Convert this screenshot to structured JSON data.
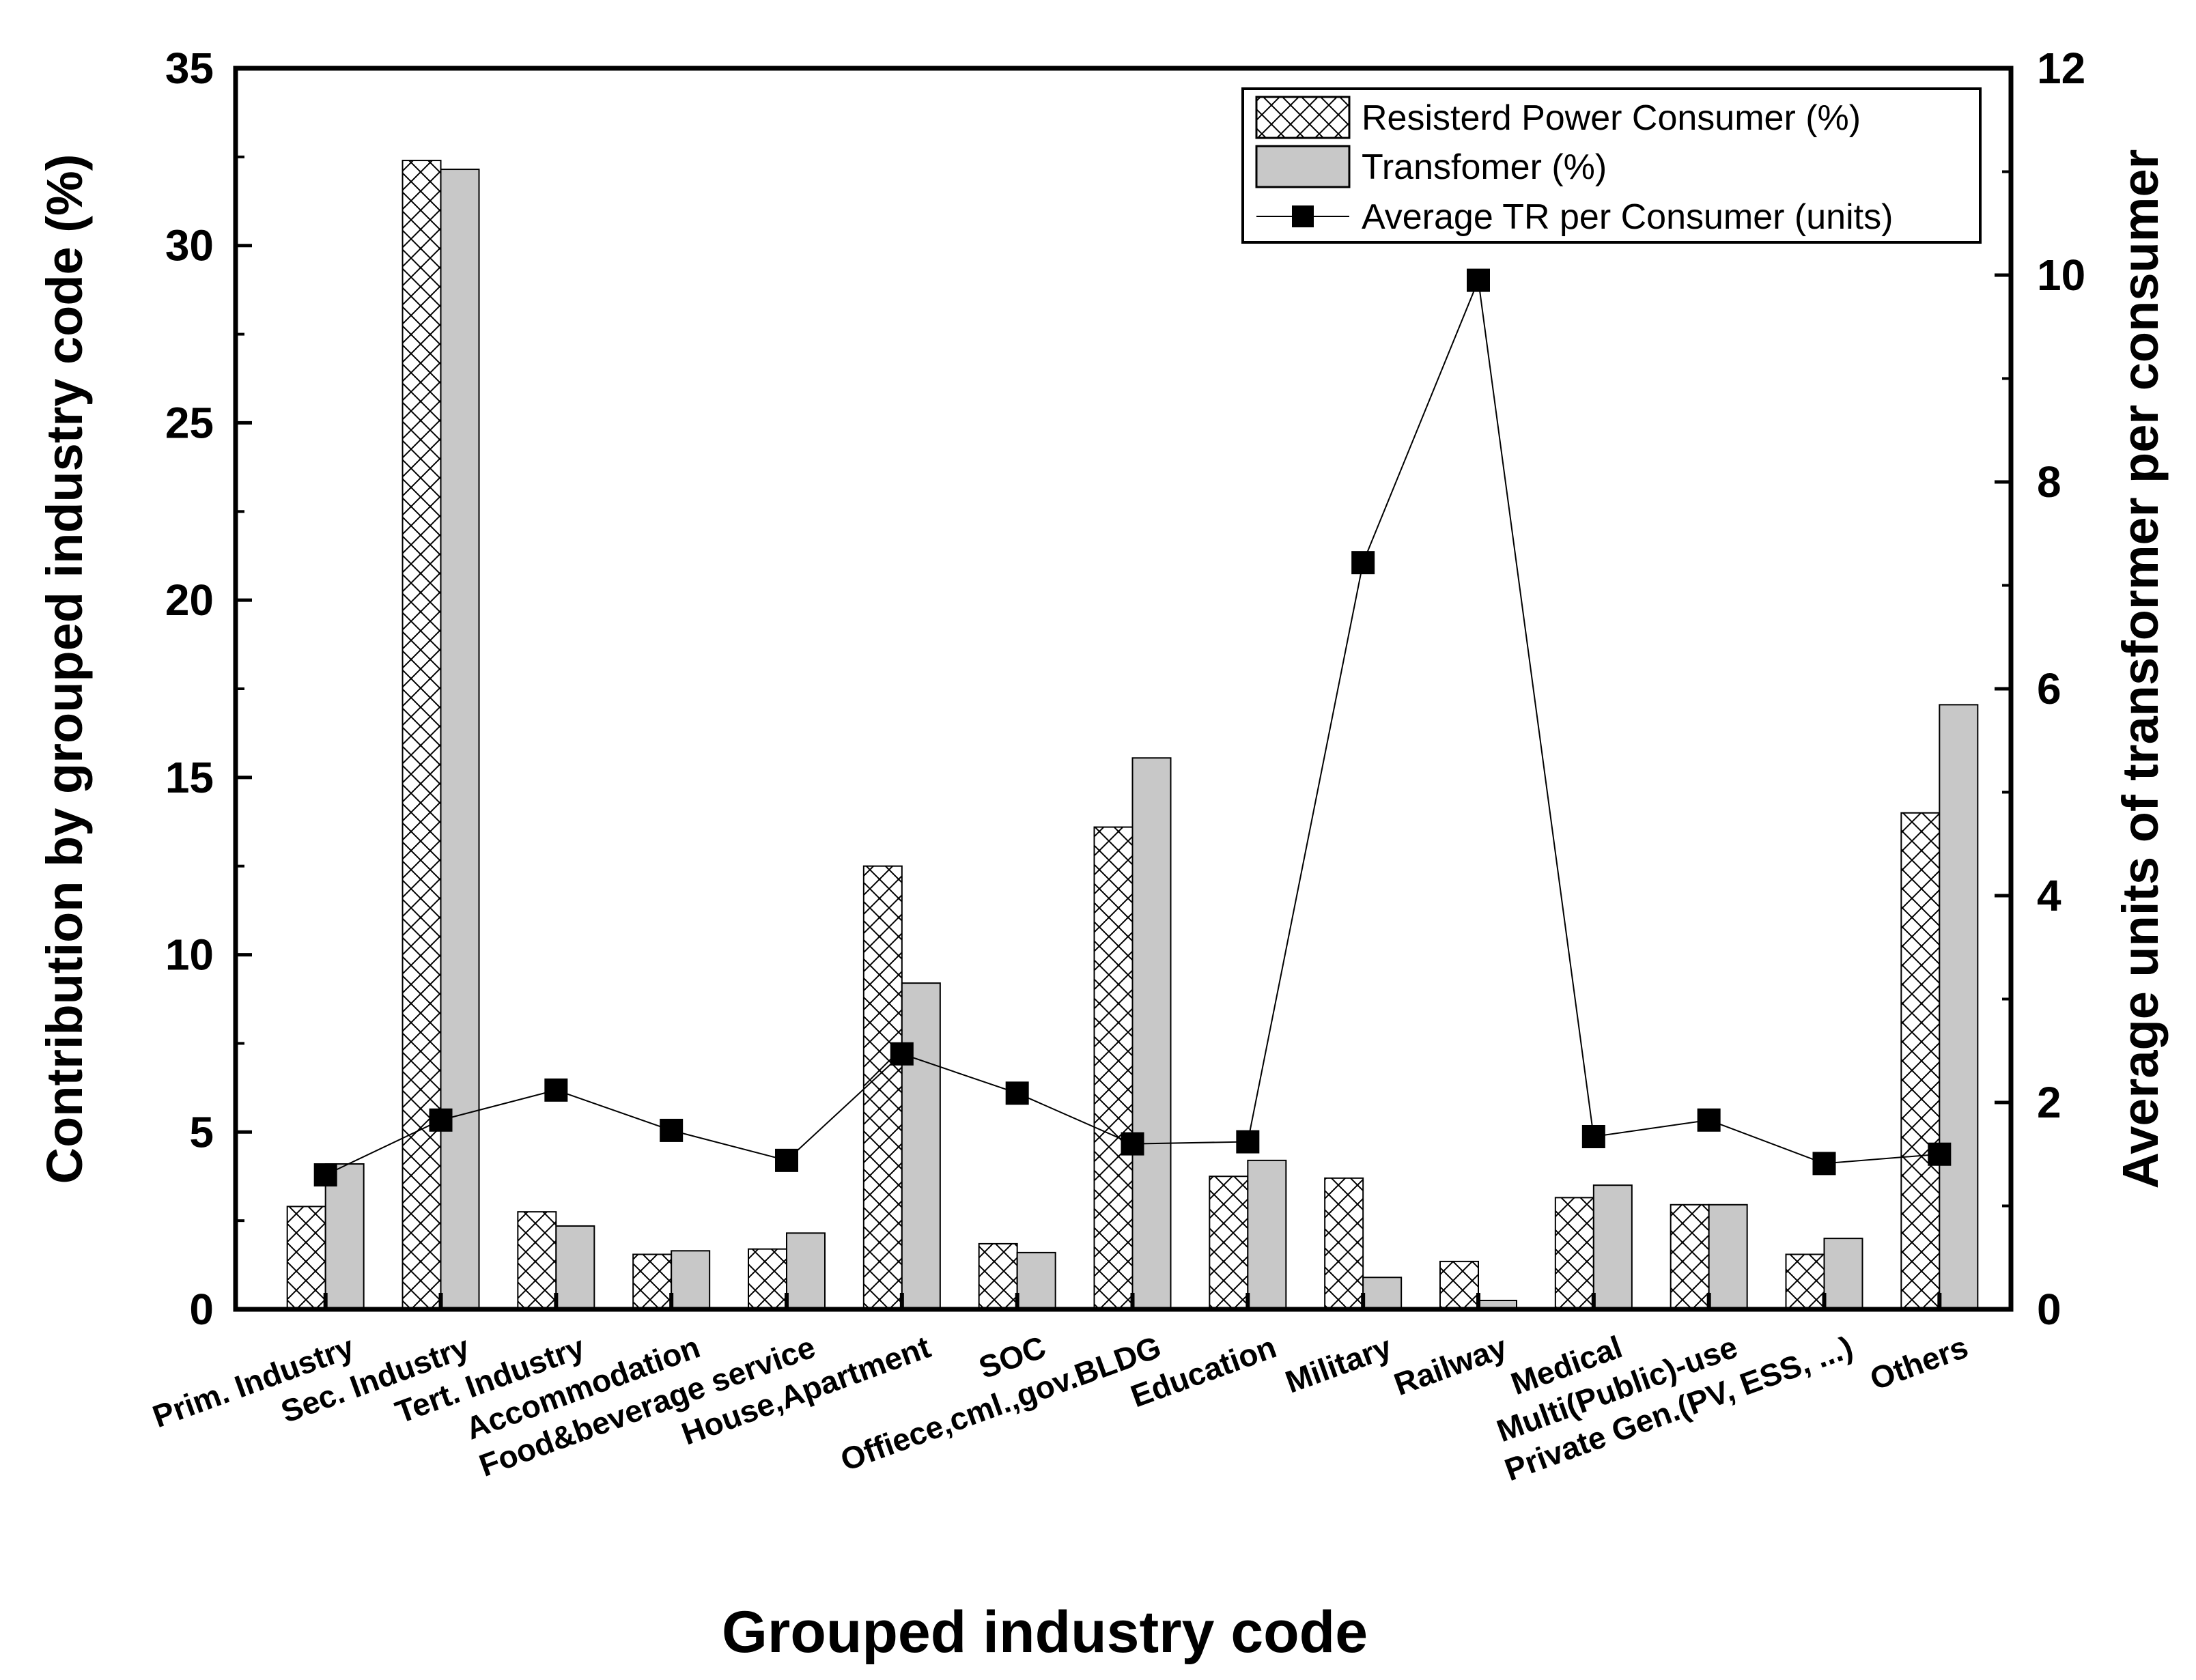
{
  "chart_data": {
    "type": "bar",
    "xlabel": "Grouped industry code",
    "ylabel": "Contribution by grouped industry code (%)",
    "y2label": "Average units of transformer per consumer",
    "ylim": [
      0,
      35
    ],
    "y2lim": [
      0,
      12
    ],
    "yticks": [
      "0",
      "5",
      "10",
      "15",
      "20",
      "25",
      "30",
      "35"
    ],
    "y2ticks": [
      "0",
      "2",
      "4",
      "6",
      "8",
      "10",
      "12"
    ],
    "categories": [
      "Prim. Industry",
      "Sec. Industry",
      "Tert. Industry",
      "Accommodation",
      "Food&beverage service",
      "House,Apartment",
      "SOC",
      "Offiece,cml.,gov.BLDG",
      "Education",
      "Military",
      "Railway",
      "Medical",
      "Multi(Public)-use",
      "Private Gen.(PV, ESS, ...)",
      "Others"
    ],
    "series": [
      {
        "name": "Resisterd Power Consumer (%)",
        "kind": "bar",
        "pattern": "crosshatch",
        "axis": "left",
        "values": [
          2.9,
          32.4,
          2.75,
          1.55,
          1.7,
          12.5,
          1.85,
          13.6,
          3.75,
          3.7,
          1.35,
          3.15,
          2.95,
          1.55,
          14.0
        ]
      },
      {
        "name": "Transfomer (%)",
        "kind": "bar",
        "color": "#c8c8c8",
        "axis": "left",
        "values": [
          4.1,
          32.15,
          2.35,
          1.65,
          2.15,
          9.2,
          1.6,
          15.55,
          4.2,
          0.9,
          0.25,
          3.5,
          2.95,
          2.0,
          17.05
        ]
      },
      {
        "name": "Average TR per Consumer (units)",
        "kind": "line",
        "marker": "square",
        "axis": "right",
        "values": [
          1.3,
          1.83,
          2.12,
          1.73,
          1.44,
          2.47,
          2.09,
          1.6,
          1.62,
          7.22,
          9.95,
          1.67,
          1.83,
          1.41,
          1.5
        ]
      }
    ],
    "legend": "top-right",
    "grid": false
  }
}
